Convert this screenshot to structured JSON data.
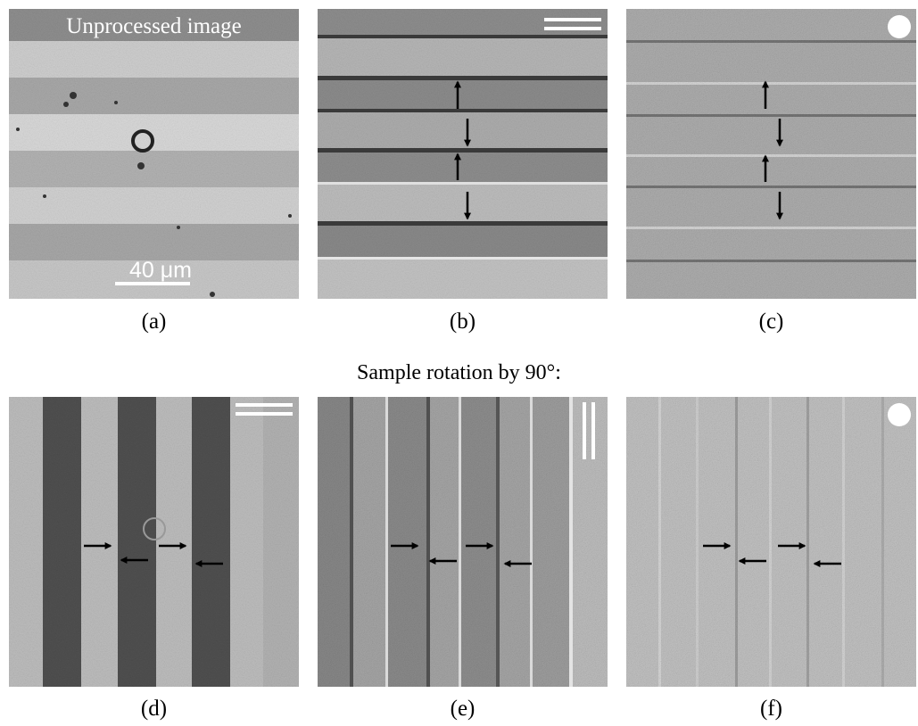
{
  "figure": {
    "panel_a": {
      "title": "Unprocessed image",
      "scale_label": "40 μm",
      "caption": "(a)",
      "symbol": "none"
    },
    "panel_b": {
      "caption": "(b)",
      "symbol": "double-horizontal-lines-icon"
    },
    "panel_c": {
      "caption": "(c)",
      "symbol": "circle-icon"
    },
    "heading": "Sample rotation by 90°:",
    "panel_d": {
      "caption": "(d)",
      "symbol": "double-horizontal-lines-icon"
    },
    "panel_e": {
      "caption": "(e)",
      "symbol": "double-vertical-lines-icon"
    },
    "panel_f": {
      "caption": "(f)",
      "symbol": "circle-icon"
    }
  },
  "colors": {
    "background": "#ffffff",
    "arrow": "#000000",
    "overlay": "#ffffff"
  }
}
